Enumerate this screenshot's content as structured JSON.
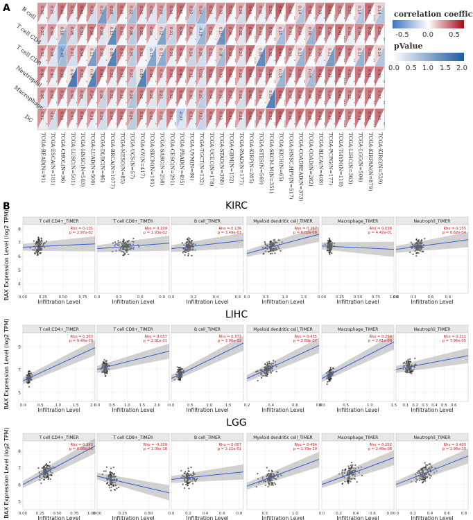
{
  "panel_a": {
    "label": "A",
    "legend": {
      "corr_title": "correlation coefficient",
      "corr_ticks": [
        "-0.5",
        "0.0",
        "0.5"
      ],
      "p_title": "pValue",
      "p_ticks": [
        "0.0",
        "0.5",
        "1.0",
        "1.5",
        "2.0"
      ]
    }
  },
  "panel_b": {
    "label": "B",
    "y_axis_title": "BAX Expression Level (log2 TPM)",
    "x_axis_title": "Infiltration Level",
    "rows": [
      {
        "title": "KIRC",
        "side_label": "KIRC"
      },
      {
        "title": "LIHC",
        "side_label": "LIHC"
      },
      {
        "title": "LGG",
        "side_label": "LGG"
      }
    ]
  },
  "chart_data": [
    {
      "type": "heatmap",
      "title": "Correlation of BAX expression with immune infiltration across TCGA cancer types",
      "y_categories": [
        "B cell",
        "T cell CD4",
        "T cell CD8",
        "Neutrophil",
        "Macrophage",
        "DC"
      ],
      "x_categories": [
        "TCGA-READ(N=91)",
        "TCGA-ESCA(N=181)",
        "TCGA-CHOL(N=36)",
        "TCGA-LUSC(N=501)",
        "TCGA-HNSC(N=503)",
        "TCGA-LUAD(N=500)",
        "TCGA-DLBC(N=46)",
        "TCGA-BRCA(N=1077)",
        "TCGA-MESO(N=85)",
        "TCGA-UCS(N=57)",
        "TCGA-OV(N=417)",
        "TCGA-SKCM(N=101)",
        "TCGA-SARC(N=258)",
        "TCGA-CESC(N=291)",
        "TCGA-PRAD(N=495)",
        "TCGA-UVM(N=80)",
        "TCGA-TGCT(N=132)",
        "TCGA-UCEC(N=178)",
        "TCGA-STAD(N=388)",
        "TCGA-GBM(N=152)",
        "TCGA-PAAD(N=177)",
        "TCGA-KIRP(N=285)",
        "TCGA-STES(N=569)",
        "TCGA-SKCM.M(N=351)",
        "TCGA-KICH(N=65)",
        "TCGA-HNSC.HPV(N=517)",
        "TCGA-COADREAD(N=373)",
        "TCGA-COAD(N=282)",
        "TCGA-BLCA(N=408)",
        "TCGA-PCPG(N=177)",
        "TCGA-THYM(N=118)",
        "TCGA-LIHC(N=363)",
        "TCGA-LGG(N=504)",
        "TCGA-KIRPAN(N=879)",
        "TCGA-KIRC(N=529)"
      ],
      "value_rows": [
        [
          0.3,
          0.25,
          0.4,
          0.35,
          0.42,
          0.33,
          0.2,
          0.28,
          0.38,
          0.22,
          0.36,
          0.31,
          0.29,
          0.34,
          0.41,
          0.27,
          0.24,
          0.37,
          0.32,
          0.39,
          0.26,
          0.43,
          0.3,
          0.35,
          0.45,
          0.4,
          0.14,
          0.38,
          0.33,
          0.44,
          0.35,
          0.37,
          0.14,
          0.42,
          0.14
        ],
        [
          0.27,
          0.3,
          0.16,
          0.25,
          0.31,
          0.38,
          0.28,
          0.11,
          0.33,
          0.26,
          0.35,
          0.29,
          0.12,
          0.21,
          0.34,
          0.3,
          -0.19,
          0.32,
          0.1,
          0.36,
          0.28,
          0.4,
          0.33,
          0.37,
          0.15,
          0.31,
          0.34,
          0.16,
          0.39,
          0.35,
          0.41,
          0.3,
          0.34,
          0.38,
          0.36
        ],
        [
          0.32,
          0.28,
          -0.4,
          0.27,
          0.34,
          0.11,
          0.3,
          0.09,
          0.37,
          0.25,
          0.33,
          -0.11,
          0.12,
          0.29,
          0.36,
          0.24,
          0.26,
          0.31,
          0.18,
          0.38,
          0.27,
          0.42,
          0.09,
          0.35,
          0.44,
          0.33,
          0.13,
          0.37,
          0.3,
          0.11,
          0.4,
          0.36,
          0.13,
          0.39,
          0.14
        ],
        [
          0.35,
          0.3,
          0.38,
          0.08,
          0.33,
          0.09,
          0.41,
          0.32,
          0.37,
          0.27,
          0.09,
          0.34,
          0.3,
          0.36,
          0.4,
          0.31,
          0.28,
          0.39,
          0.33,
          0.42,
          0.29,
          0.44,
          0.35,
          0.38,
          0.13,
          0.36,
          0.39,
          0.18,
          0.41,
          0.37,
          0.43,
          0.35,
          0.39,
          0.41,
          0.4
        ],
        [
          0.28,
          0.32,
          0.35,
          0.3,
          0.29,
          0.34,
          0.26,
          0.31,
          0.33,
          0.24,
          0.36,
          0.29,
          0.27,
          0.32,
          0.38,
          0.3,
          0.25,
          0.34,
          0.31,
          0.37,
          0.26,
          0.4,
          0.33,
          0.09,
          0.42,
          0.35,
          0.38,
          0.36,
          0.39,
          0.34,
          0.41,
          0.32,
          0.36,
          0.38,
          0.37
        ],
        [
          0.31,
          0.27,
          0.39,
          0.33,
          0.36,
          0.3,
          0.29,
          0.34,
          0.38,
          0.26,
          0.35,
          0.32,
          0.28,
          0.37,
          -0.27,
          0.31,
          0.27,
          0.36,
          0.33,
          0.41,
          0.28,
          0.42,
          0.35,
          0.37,
          0.44,
          0.36,
          0.4,
          0.38,
          0.4,
          0.37,
          0.42,
          0.35,
          0.39,
          0.42,
          0.4
        ]
      ],
      "pvalue_rows": [
        [
          0.1,
          0.3,
          0.05,
          0.2,
          0.0,
          0.4,
          1.2,
          0.6,
          0.1,
          0.8,
          0.2,
          0.3,
          0.5,
          0.1,
          0.05,
          0.6,
          0.9,
          0.2,
          0.3,
          0.1,
          0.4,
          0.05,
          0.2,
          0.1,
          0.0,
          0.05,
          0.7,
          0.1,
          0.2,
          0.0,
          0.1,
          0.05,
          0.7,
          0.0,
          0.7
        ],
        [
          0.3,
          0.2,
          0.9,
          0.4,
          0.1,
          0.05,
          0.3,
          1.4,
          0.1,
          0.6,
          0.1,
          0.2,
          1.1,
          0.5,
          0.05,
          0.2,
          0.9,
          0.1,
          1.3,
          0.05,
          0.3,
          0.0,
          0.1,
          0.05,
          0.8,
          0.1,
          0.1,
          0.9,
          0.05,
          0.1,
          0.0,
          0.2,
          0.1,
          0.05,
          0.05
        ],
        [
          0.2,
          0.3,
          0.8,
          0.4,
          0.1,
          1.2,
          0.2,
          1.5,
          0.1,
          0.6,
          0.1,
          1.1,
          1.0,
          0.2,
          0.05,
          0.5,
          0.4,
          0.1,
          0.8,
          0.05,
          0.3,
          0.0,
          1.4,
          0.1,
          0.0,
          0.1,
          0.9,
          0.05,
          0.2,
          1.2,
          0.05,
          0.05,
          0.9,
          0.05,
          0.7
        ],
        [
          0.1,
          0.2,
          0.05,
          1.6,
          0.1,
          1.5,
          0.05,
          0.2,
          0.1,
          0.5,
          1.5,
          0.1,
          0.2,
          0.1,
          0.05,
          0.2,
          0.3,
          0.05,
          0.1,
          0.0,
          0.3,
          0.0,
          0.1,
          0.05,
          0.9,
          0.1,
          0.05,
          0.8,
          0.05,
          0.1,
          0.0,
          0.1,
          0.05,
          0.05,
          0.05
        ],
        [
          0.3,
          0.1,
          0.1,
          0.2,
          0.3,
          0.1,
          0.5,
          0.2,
          0.1,
          0.7,
          0.1,
          0.3,
          0.4,
          0.1,
          0.05,
          0.2,
          0.6,
          0.1,
          0.2,
          0.05,
          0.4,
          0.0,
          0.1,
          1.5,
          0.0,
          0.1,
          0.05,
          0.1,
          0.05,
          0.1,
          0.0,
          0.1,
          0.1,
          0.05,
          0.05
        ],
        [
          0.2,
          0.4,
          0.05,
          0.1,
          0.1,
          0.2,
          0.4,
          0.1,
          0.05,
          0.6,
          0.1,
          0.2,
          0.3,
          0.05,
          0.3,
          0.2,
          0.5,
          0.1,
          0.1,
          0.0,
          0.3,
          0.0,
          0.1,
          0.05,
          0.0,
          0.1,
          0.05,
          0.05,
          0.05,
          0.1,
          0.0,
          0.1,
          0.05,
          0.0,
          0.05
        ]
      ],
      "legend": {
        "color_title": "correlation coefficient",
        "color_range": [
          -0.7,
          0.7
        ],
        "p_title": "pValue",
        "p_range": [
          0,
          2
        ]
      }
    },
    {
      "type": "scatter",
      "cancer": "KIRC",
      "title": "KIRC",
      "ylabel": "BAX Expression Level (log2 TPM)",
      "xlabel": "Infiltration Level",
      "ylim": [
        3.3,
        8.3
      ],
      "y_ticks": [
        "4",
        "5",
        "6",
        "7",
        "8"
      ],
      "panels": [
        {
          "name": "T cell CD4+_TIMER",
          "rho": "Rho = 0.101",
          "p": "p = 2.97e-02",
          "xlim": [
            0,
            0.9
          ],
          "x_ticks": [
            "0.00",
            "0.25",
            "0.50",
            "0.75"
          ],
          "fit": [
            6.65,
            6.9
          ],
          "center": 0.18,
          "spread": 0.09,
          "ymean": 6.7,
          "ysd": 0.5
        },
        {
          "name": "T cell CD8+_TIMER",
          "rho": "Rho = 0.109",
          "p": "p = 1.93e-02",
          "xlim": [
            0,
            1.0
          ],
          "x_ticks": [
            "0.0",
            "0.3",
            "0.6",
            "0.9"
          ],
          "fit": [
            6.55,
            6.95
          ],
          "center": 0.35,
          "spread": 0.2,
          "ymean": 6.7,
          "ysd": 0.5
        },
        {
          "name": "B cell_TIMER",
          "rho": "Rho = 0.136",
          "p": "p = 3.49e-03",
          "xlim": [
            0,
            0.65
          ],
          "x_ticks": [
            "0.0",
            "0.2",
            "0.4",
            "0.6"
          ],
          "fit": [
            6.55,
            7.15
          ],
          "center": 0.14,
          "spread": 0.08,
          "ymean": 6.7,
          "ysd": 0.5
        },
        {
          "name": "Myeloid dendritic cell_TIMER",
          "rho": "Rho = 0.267",
          "p": "p = 6.02e-09",
          "xlim": [
            0,
            1.9
          ],
          "x_ticks": [
            "0.0",
            "0.5",
            "1.0",
            "1.5"
          ],
          "fit": [
            6.2,
            7.6
          ],
          "center": 0.6,
          "spread": 0.3,
          "ymean": 6.7,
          "ysd": 0.55
        },
        {
          "name": "Macrophage_TIMER",
          "rho": "Rho = 0.036",
          "p": "p = 4.42e-01",
          "xlim": [
            0,
            1.0
          ],
          "x_ticks": [
            "0.00",
            "0.25",
            "0.50",
            "0.75",
            "1.00"
          ],
          "fit": [
            6.75,
            6.5
          ],
          "center": 0.1,
          "spread": 0.06,
          "ymean": 6.7,
          "ysd": 0.5
        },
        {
          "name": "Neutrophil_TIMER",
          "rho": "Rho = 0.155",
          "p": "p = 8.62e-04",
          "xlim": [
            0,
            1.25
          ],
          "x_ticks": [
            "0.0",
            "0.3",
            "0.6",
            "0.9"
          ],
          "fit": [
            6.5,
            7.2
          ],
          "center": 0.35,
          "spread": 0.15,
          "ymean": 6.7,
          "ysd": 0.5
        }
      ]
    },
    {
      "type": "scatter",
      "cancer": "LIHC",
      "title": "LIHC",
      "ylabel": "BAX Expression Level (log2 TPM)",
      "xlabel": "Infiltration Level",
      "ylim": [
        4.2,
        10.2
      ],
      "y_ticks": [
        "5",
        "7",
        "9"
      ],
      "panels": [
        {
          "name": "T cell CD4+_TIMER",
          "rho": "Rho = 0.303",
          "p": "p = 9.48e-09",
          "xlim": [
            0,
            2.05
          ],
          "x_ticks": [
            "0.0",
            "0.5",
            "1.0",
            "1.5",
            "2.0"
          ],
          "fit": [
            6.0,
            8.9
          ],
          "center": 0.15,
          "spread": 0.1,
          "ymean": 6.3,
          "ysd": 0.55
        },
        {
          "name": "T cell CD8+_TIMER",
          "rho": "Rho = 0.057",
          "p": "p = 2.91e-01",
          "xlim": [
            0,
            2.4
          ],
          "x_ticks": [
            "0.0",
            "0.5",
            "1.0",
            "1.5",
            "2.0"
          ],
          "fit": [
            7.0,
            8.6
          ],
          "center": 0.25,
          "spread": 0.15,
          "ymean": 7.2,
          "ysd": 0.6
        },
        {
          "name": "B cell_TIMER",
          "rho": "Rho = 0.371",
          "p": "p = 1.06e-12",
          "xlim": [
            0,
            1.9
          ],
          "x_ticks": [
            "0.0",
            "0.5",
            "1.0",
            "1.5"
          ],
          "fit": [
            6.2,
            9.3
          ],
          "center": 0.2,
          "spread": 0.12,
          "ymean": 6.6,
          "ysd": 0.55
        },
        {
          "name": "Myeloid dendritic cell_TIMER",
          "rho": "Rho = 0.435",
          "p": "p = 2.89e-07",
          "xlim": [
            0.2,
            0.8
          ],
          "x_ticks": [
            "0.2",
            "0.4",
            "0.6",
            "0.8"
          ],
          "fit": [
            6.2,
            9.1
          ],
          "center": 0.35,
          "spread": 0.1,
          "ymean": 7.0,
          "ysd": 0.6
        },
        {
          "name": "Macrophage_TIMER",
          "rho": "Rho = 0.294",
          "p": "p = 2.61e-08",
          "xlim": [
            0,
            1.5
          ],
          "x_ticks": [
            "0.0",
            "0.5",
            "1.0",
            "1.5"
          ],
          "fit": [
            6.2,
            9.4
          ],
          "center": 0.15,
          "spread": 0.1,
          "ymean": 6.8,
          "ysd": 0.6
        },
        {
          "name": "Neutrophil_TIMER",
          "rho": "Rho = 0.211",
          "p": "p = 7.96e-05",
          "xlim": [
            0,
            0.75
          ],
          "x_ticks": [
            "0.1",
            "0.2",
            "0.3",
            "0.4",
            "0.5",
            "0.6"
          ],
          "fit": [
            7.0,
            8.2
          ],
          "center": 0.12,
          "spread": 0.08,
          "ymean": 7.2,
          "ysd": 0.55
        }
      ]
    },
    {
      "type": "scatter",
      "cancer": "LGG",
      "title": "LGG",
      "ylabel": "BAX Expression Level (log2 TPM)",
      "xlabel": "Infiltration Level",
      "ylim": [
        4.5,
        8.6
      ],
      "y_ticks": [
        "5",
        "6",
        "7",
        "8"
      ],
      "panels": [
        {
          "name": "T cell CD4+_TIMER",
          "rho": "Rho = 0.342",
          "p": "p = 8.06e-06",
          "xlim": [
            0,
            1.05
          ],
          "x_ticks": [
            "0.00",
            "0.25",
            "0.50",
            "0.75",
            "1.00"
          ],
          "fit": [
            6.0,
            8.3
          ],
          "center": 0.3,
          "spread": 0.15,
          "ymean": 6.6,
          "ysd": 0.55
        },
        {
          "name": "T cell CD8+_TIMER",
          "rho": "Rho = -0.309",
          "p": "p = 1.06e-18",
          "xlim": [
            0,
            0.7
          ],
          "x_ticks": [
            "0.00",
            "0.25",
            "0.50"
          ],
          "fit": [
            6.5,
            5.5
          ],
          "center": 0.12,
          "spread": 0.08,
          "ymean": 6.3,
          "ysd": 0.55
        },
        {
          "name": "B cell_TIMER",
          "rho": "Rho = 0.057",
          "p": "p = 2.11e-01",
          "xlim": [
            0,
            0.85
          ],
          "x_ticks": [
            "0.0",
            "0.2",
            "0.4",
            "0.6",
            "0.8"
          ],
          "fit": [
            6.3,
            6.75
          ],
          "center": 0.18,
          "spread": 0.1,
          "ymean": 6.5,
          "ysd": 0.5
        },
        {
          "name": "Myeloid dendritic cell_TIMER",
          "rho": "Rho = 0.484",
          "p": "p = 1.79e-29",
          "xlim": [
            0.2,
            1.4
          ],
          "x_ticks": [
            "0.5",
            "1.0"
          ],
          "fit": [
            5.9,
            7.5
          ],
          "center": 0.55,
          "spread": 0.2,
          "ymean": 6.5,
          "ysd": 0.5
        },
        {
          "name": "Macrophage_TIMER",
          "rho": "Rho = 0.252",
          "p": "p = 2.48e-08",
          "xlim": [
            0,
            0.85
          ],
          "x_ticks": [
            "0.0",
            "0.2",
            "0.4",
            "0.6",
            "0.8"
          ],
          "fit": [
            6.0,
            7.6
          ],
          "center": 0.3,
          "spread": 0.15,
          "ymean": 6.6,
          "ysd": 0.5
        },
        {
          "name": "Neutrophil_TIMER",
          "rho": "Rho = 0.405",
          "p": "p = 2.96e-20",
          "xlim": [
            0,
            0.85
          ],
          "x_ticks": [
            "0.0",
            "0.2",
            "0.4",
            "0.6",
            "0.8"
          ],
          "fit": [
            6.0,
            7.7
          ],
          "center": 0.3,
          "spread": 0.15,
          "ymean": 6.6,
          "ysd": 0.5
        }
      ]
    }
  ]
}
